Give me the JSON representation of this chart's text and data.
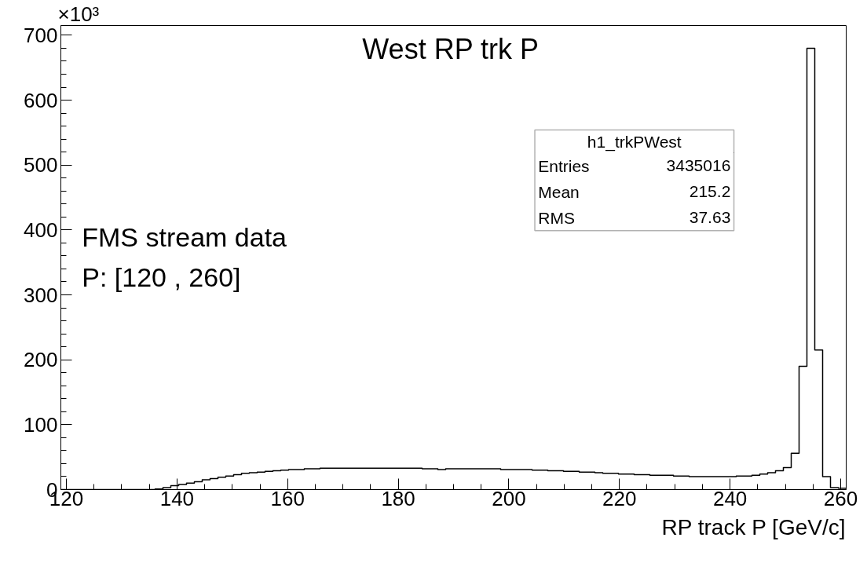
{
  "chart_data": {
    "type": "histogram",
    "title": "West RP trk P",
    "xlabel": "RP track P [GeV/c]",
    "annotations": [
      "×10³",
      "FMS stream data",
      "P: [120 , 260]",
      "h1_trkPWest",
      "Entries",
      "3435016",
      "Mean",
      "215.2",
      "RMS",
      "37.63"
    ],
    "bins": [
      119,
      120.42,
      121.84,
      123.26,
      124.68,
      126.1,
      127.52,
      128.94,
      130.36,
      131.78,
      133.2,
      134.62,
      136.04,
      137.46,
      138.88,
      140.3,
      141.72,
      143.14,
      144.56,
      145.98,
      147.4,
      148.82,
      150.24,
      151.66,
      153.08,
      154.5,
      155.92,
      157.34,
      158.76,
      160.18,
      161.6,
      163.02,
      164.44,
      165.86,
      167.28,
      168.7,
      170.12,
      171.54,
      172.96,
      174.38,
      175.8,
      177.22,
      178.64,
      180.06,
      181.48,
      182.9,
      184.32,
      185.74,
      187.16,
      188.58,
      190,
      191.42,
      192.84,
      194.26,
      195.68,
      197.1,
      198.52,
      199.94,
      201.36,
      202.78,
      204.2,
      205.62,
      207.04,
      208.46,
      209.88,
      211.3,
      212.72,
      214.14,
      215.56,
      216.98,
      218.4,
      219.82,
      221.24,
      222.66,
      224.08,
      225.5,
      226.92,
      228.34,
      229.76,
      231.18,
      232.6,
      234.02,
      235.44,
      236.86,
      238.28,
      239.7,
      241.12,
      242.54,
      243.96,
      245.38,
      246.8,
      248.22,
      249.64,
      251.06,
      252.48,
      253.9,
      255.32,
      256.74,
      258.16,
      259.58,
      261
    ],
    "values": [
      0,
      0,
      0,
      0,
      0,
      0,
      0,
      0,
      0,
      0,
      0,
      0,
      1,
      3,
      6,
      8,
      10,
      12,
      15,
      17,
      19,
      21,
      23,
      25,
      26,
      27,
      28,
      29,
      30,
      31,
      31,
      32,
      32,
      33,
      33,
      33,
      33,
      33,
      33,
      33,
      33,
      33,
      33,
      33,
      33,
      33,
      32,
      32,
      31,
      32,
      32,
      32,
      32,
      32,
      32,
      32,
      31,
      31,
      31,
      31,
      30,
      30,
      29,
      29,
      28,
      28,
      27,
      27,
      26,
      25,
      25,
      24,
      24,
      23,
      23,
      22,
      22,
      22,
      21,
      21,
      20,
      20,
      20,
      20,
      20,
      20,
      21,
      21,
      22,
      24,
      26,
      29,
      34,
      56,
      190,
      680,
      215,
      20,
      3,
      2
    ],
    "color": "#000000",
    "xlim": [
      119,
      261
    ],
    "ylim": [
      0,
      715
    ],
    "xticks": [
      120,
      140,
      160,
      180,
      200,
      220,
      240,
      260
    ],
    "yticks": [
      0,
      100,
      200,
      300,
      400,
      500,
      600,
      700
    ],
    "grid": false
  }
}
